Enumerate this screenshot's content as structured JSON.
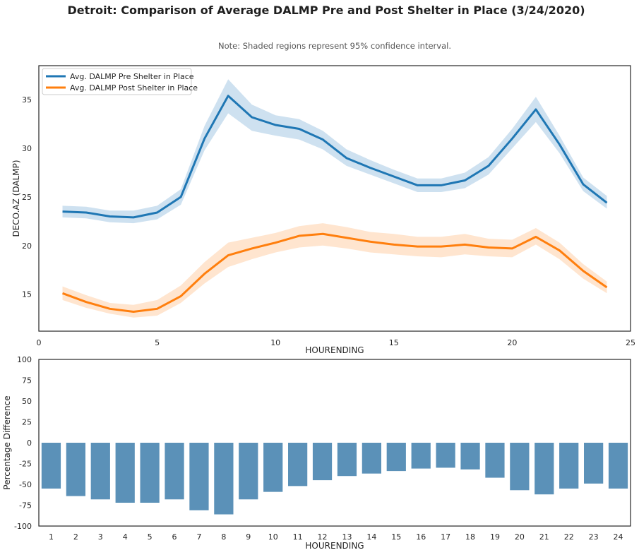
{
  "title": "Detroit: Comparison of Average DALMP Pre and Post Shelter in Place (3/24/2020)",
  "subtitle": "Note: Shaded regions represent 95% confidence interval.",
  "chart_data": [
    {
      "type": "line",
      "xlabel": "HOURENDING",
      "ylabel": "DECO.AZ (DALMP)",
      "xlim": [
        0,
        25
      ],
      "ylim": [
        11.2,
        38.5
      ],
      "xticks": [
        0,
        5,
        10,
        15,
        20,
        25
      ],
      "yticks": [
        15,
        20,
        25,
        30,
        35
      ],
      "grid": false,
      "legend_position": "top-left",
      "x": [
        1,
        2,
        3,
        4,
        5,
        6,
        7,
        8,
        9,
        10,
        11,
        12,
        13,
        14,
        15,
        16,
        17,
        18,
        19,
        20,
        21,
        22,
        23,
        24
      ],
      "series": [
        {
          "name": "Avg. DALMP Pre Shelter in Place",
          "color": "#1f77b4",
          "values": [
            23.5,
            23.4,
            23.0,
            22.9,
            23.4,
            25.0,
            31.0,
            35.4,
            33.2,
            32.4,
            32.0,
            30.9,
            29.0,
            28.0,
            27.1,
            26.2,
            26.2,
            26.7,
            28.2,
            31.0,
            34.0,
            30.4,
            26.3,
            24.4
          ],
          "ci_lower": [
            22.9,
            22.8,
            22.4,
            22.3,
            22.7,
            24.2,
            29.8,
            33.6,
            31.8,
            31.3,
            30.9,
            29.9,
            28.2,
            27.3,
            26.4,
            25.5,
            25.5,
            25.9,
            27.3,
            30.0,
            32.7,
            29.5,
            25.6,
            23.8
          ],
          "ci_upper": [
            24.1,
            24.0,
            23.6,
            23.6,
            24.1,
            25.8,
            32.3,
            37.1,
            34.5,
            33.4,
            33.0,
            31.8,
            29.9,
            28.8,
            27.8,
            26.9,
            26.9,
            27.5,
            29.1,
            32.0,
            35.3,
            31.3,
            27.0,
            25.1
          ]
        },
        {
          "name": "Avg. DALMP Post Shelter in Place",
          "color": "#ff7f0e",
          "values": [
            15.1,
            14.2,
            13.5,
            13.2,
            13.5,
            14.8,
            17.1,
            19.0,
            19.7,
            20.3,
            21.0,
            21.2,
            20.8,
            20.4,
            20.1,
            19.9,
            19.9,
            20.1,
            19.8,
            19.7,
            20.9,
            19.5,
            17.4,
            15.7
          ],
          "ci_lower": [
            14.4,
            13.6,
            13.0,
            12.6,
            12.8,
            14.1,
            16.1,
            17.8,
            18.6,
            19.3,
            19.8,
            20.0,
            19.7,
            19.3,
            19.1,
            18.9,
            18.8,
            19.1,
            18.9,
            18.8,
            20.1,
            18.6,
            16.6,
            15.1
          ],
          "ci_upper": [
            15.8,
            14.9,
            14.1,
            13.9,
            14.4,
            15.9,
            18.3,
            20.3,
            20.8,
            21.3,
            22.0,
            22.3,
            21.9,
            21.4,
            21.2,
            20.9,
            20.9,
            21.2,
            20.7,
            20.6,
            21.8,
            20.3,
            18.1,
            16.3
          ]
        }
      ]
    },
    {
      "type": "bar",
      "xlabel": "HOURENDING",
      "ylabel": "Percentage Difference",
      "ylim": [
        -100,
        100
      ],
      "yticks": [
        -100,
        -75,
        -50,
        -25,
        0,
        25,
        50,
        75,
        100
      ],
      "grid": false,
      "bar_color": "#5b91b8",
      "categories": [
        "1",
        "2",
        "3",
        "4",
        "5",
        "6",
        "7",
        "8",
        "9",
        "10",
        "11",
        "12",
        "13",
        "14",
        "15",
        "16",
        "17",
        "18",
        "19",
        "20",
        "21",
        "22",
        "23",
        "24"
      ],
      "values": [
        -55,
        -64,
        -68,
        -72,
        -72,
        -68,
        -81,
        -86,
        -68,
        -59,
        -52,
        -45,
        -40,
        -37,
        -34,
        -31,
        -30,
        -32,
        -42,
        -57,
        -62,
        -55,
        -49,
        -55
      ]
    }
  ]
}
